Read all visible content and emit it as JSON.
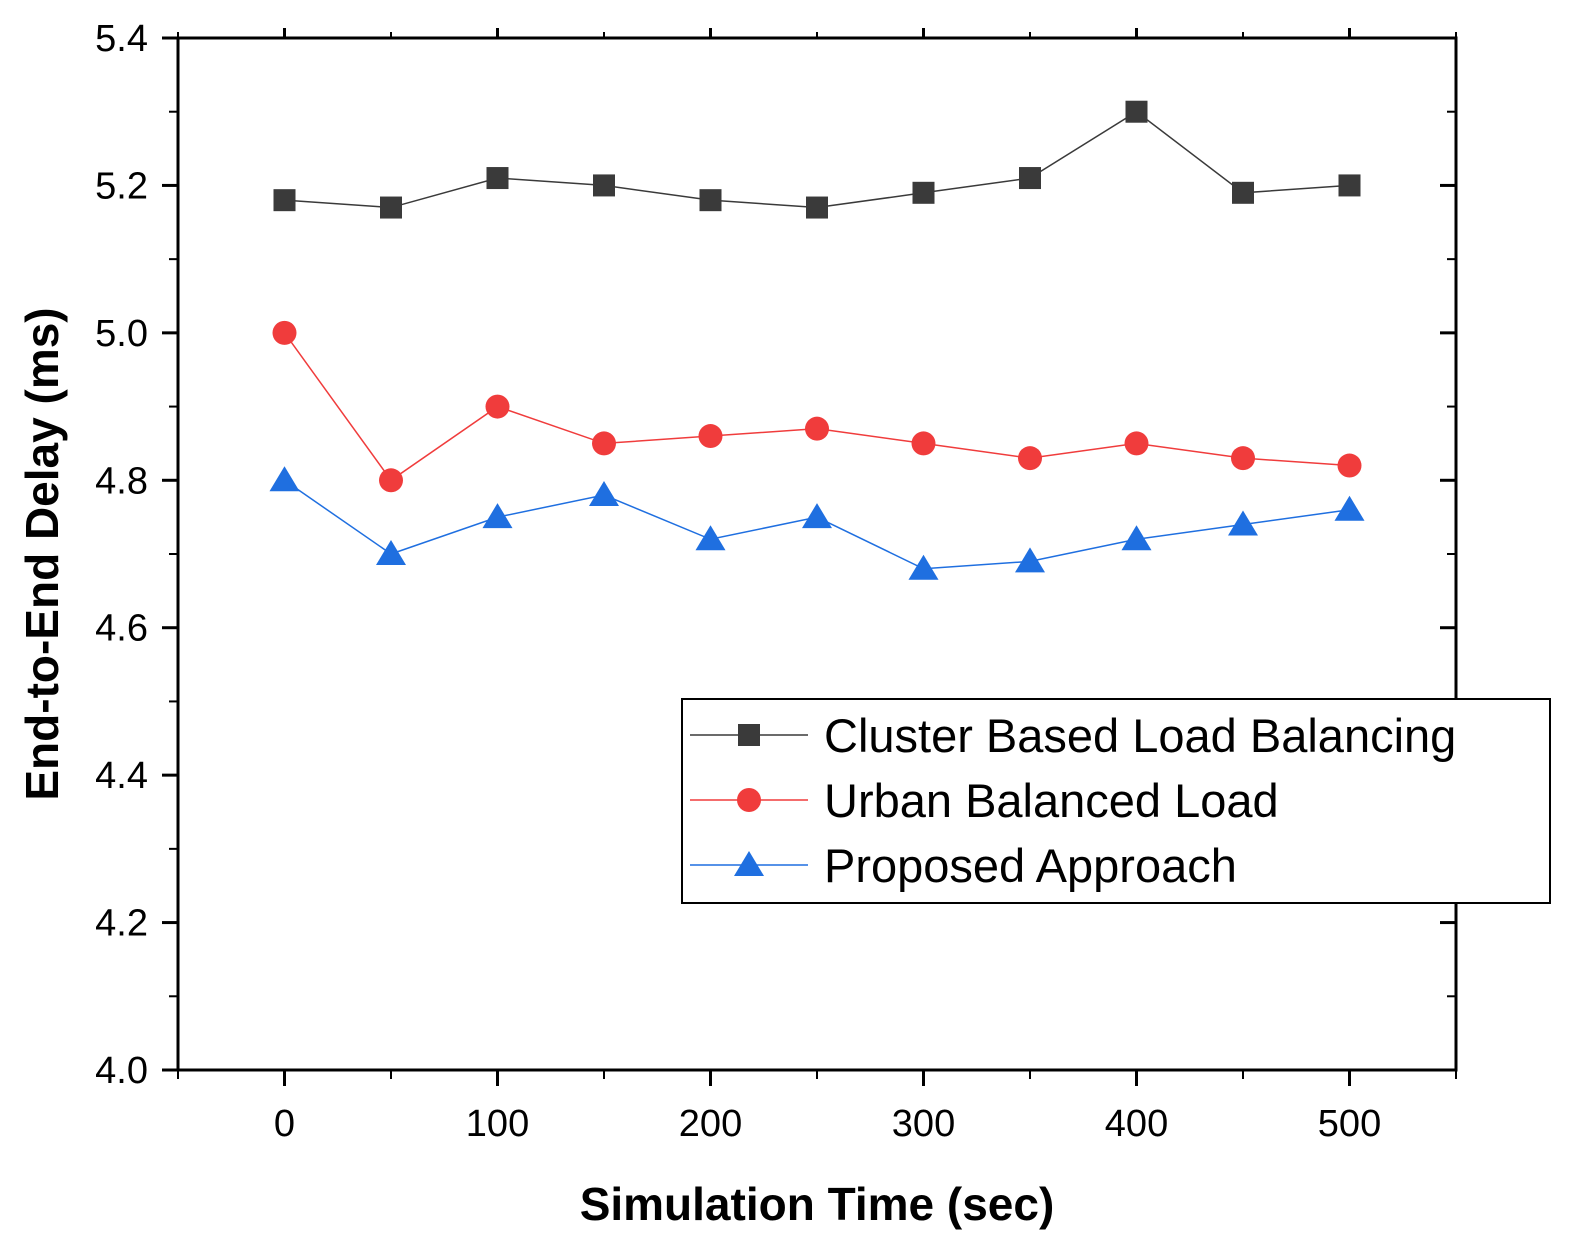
{
  "chart_data": {
    "type": "line",
    "title": "",
    "xlabel": "Simulation Time (sec)",
    "ylabel": "End-to-End Delay (ms)",
    "xlim": [
      -50,
      550
    ],
    "ylim": [
      4.0,
      5.4
    ],
    "xticks": [
      0,
      100,
      200,
      300,
      400,
      500
    ],
    "xtick_labels": [
      "0",
      "100",
      "200",
      "300",
      "400",
      "500"
    ],
    "yticks": [
      4.0,
      4.2,
      4.4,
      4.6,
      4.8,
      5.0,
      5.2,
      5.4
    ],
    "ytick_labels": [
      "4.0",
      "4.2",
      "4.4",
      "4.6",
      "4.8",
      "5.0",
      "5.2",
      "5.4"
    ],
    "grid": false,
    "legend_position": "right",
    "x": [
      0,
      50,
      100,
      150,
      200,
      250,
      300,
      350,
      400,
      450,
      500
    ],
    "series": [
      {
        "name": "Cluster Based Load Balancing",
        "color": "#3a3a3a",
        "marker": "square",
        "values": [
          5.18,
          5.17,
          5.21,
          5.2,
          5.18,
          5.17,
          5.19,
          5.21,
          5.3,
          5.19,
          5.2
        ]
      },
      {
        "name": "Urban Balanced Load",
        "color": "#f03c3c",
        "marker": "circle",
        "values": [
          5.0,
          4.8,
          4.9,
          4.85,
          4.86,
          4.87,
          4.85,
          4.83,
          4.85,
          4.83,
          4.82
        ]
      },
      {
        "name": "Proposed Approach",
        "color": "#1f6fe0",
        "marker": "triangle",
        "values": [
          4.8,
          4.7,
          4.75,
          4.78,
          4.72,
          4.75,
          4.68,
          4.69,
          4.72,
          4.74,
          4.76
        ]
      }
    ]
  }
}
